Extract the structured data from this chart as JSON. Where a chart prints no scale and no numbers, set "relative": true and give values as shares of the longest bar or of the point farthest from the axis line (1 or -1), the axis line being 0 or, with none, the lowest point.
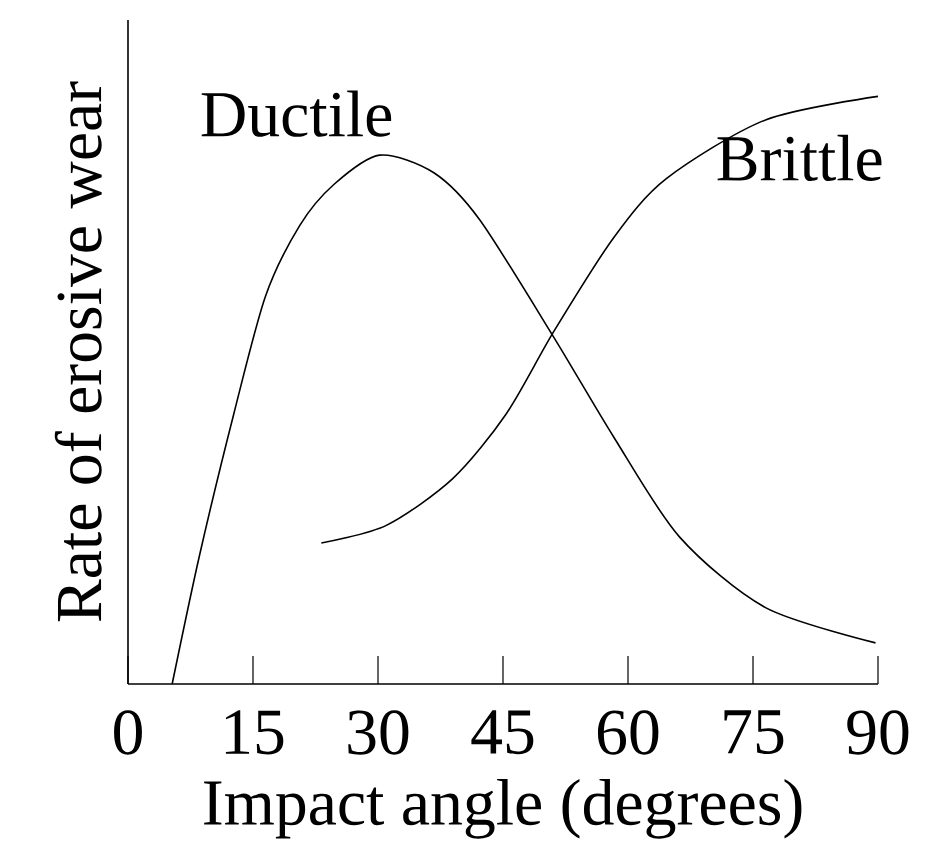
{
  "chart_data": {
    "type": "line",
    "relative": true,
    "xlabel": "Impact angle (degrees)",
    "ylabel": "Rate of erosive wear",
    "xlim": [
      0,
      90
    ],
    "xticks": [
      0,
      15,
      30,
      45,
      60,
      75,
      90
    ],
    "grid": false,
    "legend": false,
    "marker": "none",
    "line_style": "solid",
    "series": [
      {
        "name": "Ductile",
        "color": "#000000",
        "x": [
          5.3,
          8.6,
          12.7,
          16.5,
          20.6,
          24.7,
          30.2,
          36.7,
          42.2,
          51.1,
          58.3,
          66.2,
          76.5,
          89.7
        ],
        "values": [
          0,
          0.22,
          0.46,
          0.66,
          0.78,
          0.85,
          0.9,
          0.87,
          0.79,
          0.59,
          0.42,
          0.25,
          0.13,
          0.07
        ]
      },
      {
        "name": "Brittle",
        "color": "#000000",
        "x": [
          23.2,
          31.0,
          39.0,
          45.4,
          51.1,
          58.3,
          64.6,
          76.5,
          90
        ],
        "values": [
          0.24,
          0.27,
          0.35,
          0.46,
          0.6,
          0.76,
          0.86,
          0.96,
          1.0
        ]
      }
    ]
  }
}
